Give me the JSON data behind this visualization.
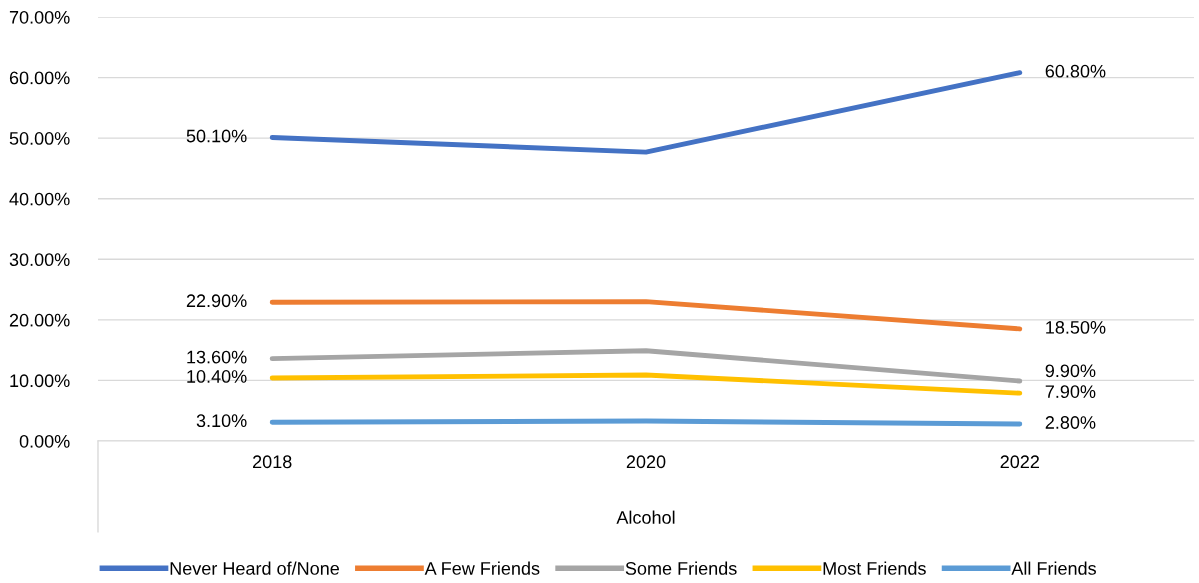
{
  "chart_data": {
    "type": "line",
    "xlabel": "Alcohol",
    "categories": [
      "2018",
      "2020",
      "2022"
    ],
    "series": [
      {
        "name": "Never Heard of/None",
        "color": "#4472c4",
        "values": [
          50.1,
          47.7,
          60.8
        ],
        "value_labels": [
          "50.10%",
          null,
          "60.80%"
        ]
      },
      {
        "name": "A Few Friends",
        "color": "#ed7d31",
        "values": [
          22.9,
          23.0,
          18.5
        ],
        "value_labels": [
          "22.90%",
          null,
          "18.50%"
        ]
      },
      {
        "name": "Some Friends",
        "color": "#a5a5a5",
        "values": [
          13.6,
          14.9,
          9.9
        ],
        "value_labels": [
          "13.60%",
          null,
          "9.90%"
        ]
      },
      {
        "name": "Most Friends",
        "color": "#ffc000",
        "values": [
          10.4,
          10.9,
          7.9
        ],
        "value_labels": [
          "10.40%",
          null,
          "7.90%"
        ]
      },
      {
        "name": "All Friends",
        "color": "#5b9bd5",
        "values": [
          3.1,
          3.3,
          2.8
        ],
        "value_labels": [
          "3.10%",
          null,
          "2.80%"
        ]
      }
    ],
    "ylim": [
      0,
      70
    ],
    "yticks": [
      {
        "value": 0,
        "label": "0.00%"
      },
      {
        "value": 10,
        "label": "10.00%"
      },
      {
        "value": 20,
        "label": "20.00%"
      },
      {
        "value": 30,
        "label": "30.00%"
      },
      {
        "value": 40,
        "label": "40.00%"
      },
      {
        "value": 50,
        "label": "50.00%"
      },
      {
        "value": 60,
        "label": "60.00%"
      },
      {
        "value": 70,
        "label": "70.00%"
      }
    ],
    "grid": "y",
    "legend": "bottom",
    "marker": "none",
    "line_style": "solid"
  }
}
